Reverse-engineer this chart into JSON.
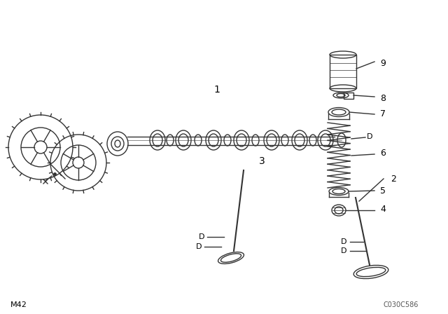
{
  "bg_color": "#ffffff",
  "line_color": "#333333",
  "bottom_left_text": "M42",
  "bottom_right_text": "C030C586",
  "camshaft_label": [
    "1",
    305,
    128
  ],
  "valve2_label": [
    "2",
    558,
    255
  ],
  "valve3_label": [
    "3",
    370,
    230
  ],
  "part4_label": [
    "4",
    543,
    298
  ],
  "part5_label": [
    "5",
    543,
    272
  ],
  "part6_label": [
    "6",
    543,
    218
  ],
  "part7_label": [
    "7",
    543,
    162
  ],
  "part8_label": [
    "8",
    543,
    140
  ],
  "part9_label": [
    "9",
    543,
    90
  ]
}
